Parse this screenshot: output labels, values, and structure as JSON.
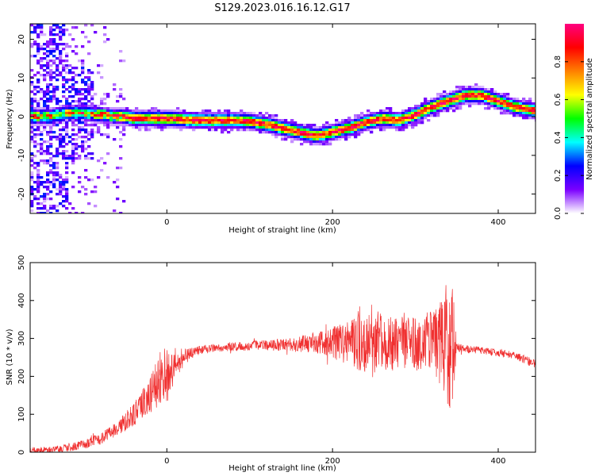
{
  "title": "S129.2023.016.16.12.G17",
  "chart_data": [
    {
      "type": "heatmap",
      "xlabel": "Height of straight line (km)",
      "ylabel": "Frequency (Hz)",
      "xlim": [
        -165,
        445
      ],
      "ylim": [
        -25,
        24
      ],
      "xticks": [
        0,
        200,
        400
      ],
      "yticks": [
        -20,
        -10,
        0,
        10,
        20
      ],
      "colorbar": {
        "label": "Normalized spectral amplitude",
        "range": [
          0,
          1
        ],
        "ticks": [
          0.0,
          0.2,
          0.4,
          0.6,
          0.8
        ],
        "colormap": [
          "#ffffff",
          "#7b00ff",
          "#0000ff",
          "#00ffff",
          "#00ff00",
          "#ffff00",
          "#ff8000",
          "#ff0000",
          "#ff0080"
        ]
      },
      "ridge": {
        "x": [
          -165,
          -140,
          -120,
          -100,
          -80,
          -60,
          -50,
          -40,
          -20,
          0,
          20,
          40,
          60,
          80,
          100,
          120,
          140,
          160,
          180,
          200,
          220,
          240,
          260,
          280,
          300,
          320,
          340,
          360,
          380,
          400,
          420,
          445
        ],
        "y": [
          0,
          0,
          1,
          1,
          0.5,
          0,
          0,
          -0.5,
          -0.5,
          -0.5,
          -0.8,
          -1,
          -1,
          -1,
          -1.2,
          -2,
          -3,
          -4,
          -5,
          -4,
          -3,
          -1.5,
          -0.5,
          -1,
          0.5,
          2.5,
          4,
          5.5,
          5.5,
          4,
          2.5,
          1.5
        ]
      }
    },
    {
      "type": "line",
      "xlabel": "Height of straight line (km)",
      "ylabel": "SNR (10 * v/v)",
      "xlim": [
        -165,
        445
      ],
      "ylim": [
        0,
        500
      ],
      "xticks": [
        0,
        200,
        400
      ],
      "yticks": [
        0,
        100,
        200,
        300,
        400,
        500
      ],
      "color": "#f03030",
      "envelope": {
        "x": [
          -165,
          -140,
          -120,
          -100,
          -80,
          -60,
          -40,
          -20,
          -15,
          -10,
          0,
          10,
          20,
          30,
          40,
          60,
          80,
          100,
          120,
          140,
          160,
          180,
          200,
          220,
          240,
          260,
          280,
          300,
          320,
          330,
          340,
          345,
          350,
          360,
          380,
          400,
          420,
          445
        ],
        "mean": [
          5,
          7,
          12,
          20,
          35,
          60,
          100,
          150,
          175,
          185,
          200,
          235,
          250,
          262,
          270,
          275,
          278,
          280,
          282,
          283,
          285,
          288,
          290,
          290,
          290,
          290,
          288,
          285,
          285,
          285,
          285,
          282,
          275,
          272,
          268,
          262,
          255,
          232
        ],
        "amplitude": [
          8,
          8,
          10,
          12,
          15,
          20,
          30,
          50,
          60,
          80,
          80,
          40,
          25,
          15,
          12,
          10,
          12,
          12,
          14,
          16,
          20,
          30,
          40,
          70,
          80,
          80,
          70,
          70,
          90,
          110,
          180,
          160,
          12,
          10,
          10,
          10,
          10,
          12
        ]
      }
    }
  ]
}
